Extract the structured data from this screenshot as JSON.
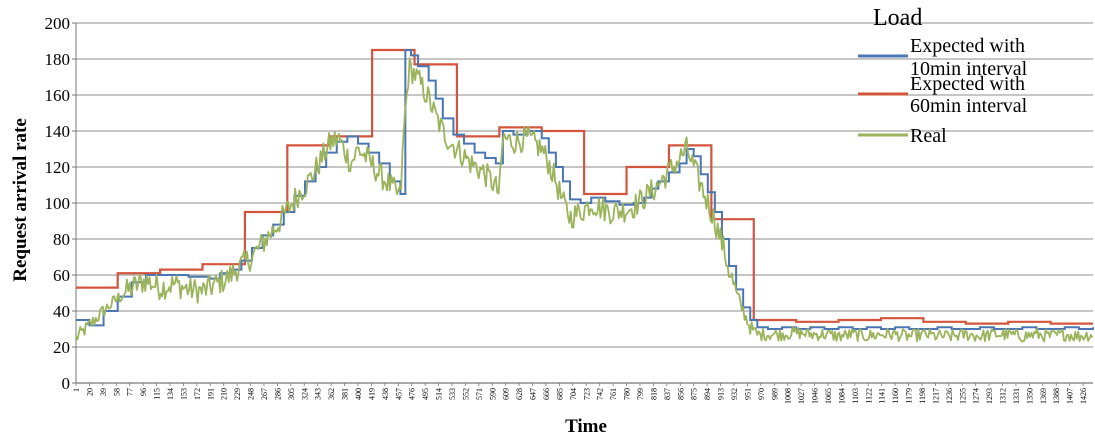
{
  "chart_data": {
    "type": "line",
    "ylabel": "Request arrival rate",
    "xlabel": "Time",
    "ylim": [
      0,
      200
    ],
    "yticks": [
      0,
      20,
      40,
      60,
      80,
      100,
      120,
      140,
      160,
      180,
      200
    ],
    "xlim": [
      1,
      1440
    ],
    "x_tick_labels": [
      "1",
      "20",
      "39",
      "58",
      "77",
      "96",
      "115",
      "134",
      "153",
      "172",
      "191",
      "210",
      "229",
      "248",
      "267",
      "286",
      "305",
      "324",
      "343",
      "362",
      "381",
      "400",
      "419",
      "438",
      "457",
      "476",
      "495",
      "514",
      "533",
      "552",
      "571",
      "590",
      "609",
      "628",
      "647",
      "666",
      "685",
      "704",
      "723",
      "742",
      "761",
      "780",
      "799",
      "818",
      "837",
      "856",
      "875",
      "894",
      "913",
      "932",
      "951",
      "970",
      "989",
      "1008",
      "1027",
      "1046",
      "1065",
      "1084",
      "1103",
      "1122",
      "1141",
      "1160",
      "1179",
      "1198",
      "1217",
      "1236",
      "1255",
      "1274",
      "1293",
      "1312",
      "1331",
      "1350",
      "1369",
      "1388",
      "1407",
      "1426"
    ],
    "grid": true,
    "legend": {
      "title": "Load",
      "placement": "top-right"
    },
    "series": [
      {
        "name": "Expected with 10min interval",
        "color": "#4a77b4",
        "style": "step",
        "points": [
          [
            1,
            35
          ],
          [
            20,
            32
          ],
          [
            40,
            40
          ],
          [
            60,
            48
          ],
          [
            80,
            56
          ],
          [
            100,
            60
          ],
          [
            130,
            60
          ],
          [
            160,
            59
          ],
          [
            190,
            58
          ],
          [
            205,
            61
          ],
          [
            220,
            63
          ],
          [
            235,
            68
          ],
          [
            250,
            75
          ],
          [
            265,
            82
          ],
          [
            280,
            88
          ],
          [
            295,
            95
          ],
          [
            310,
            104
          ],
          [
            325,
            112
          ],
          [
            340,
            120
          ],
          [
            355,
            128
          ],
          [
            370,
            134
          ],
          [
            385,
            137
          ],
          [
            400,
            133
          ],
          [
            415,
            128
          ],
          [
            430,
            122
          ],
          [
            445,
            112
          ],
          [
            460,
            105
          ],
          [
            467,
            185
          ],
          [
            475,
            182
          ],
          [
            485,
            176
          ],
          [
            500,
            168
          ],
          [
            510,
            158
          ],
          [
            520,
            147
          ],
          [
            535,
            138
          ],
          [
            550,
            133
          ],
          [
            565,
            128
          ],
          [
            580,
            125
          ],
          [
            595,
            122
          ],
          [
            605,
            140
          ],
          [
            620,
            138
          ],
          [
            640,
            140
          ],
          [
            660,
            136
          ],
          [
            670,
            128
          ],
          [
            680,
            120
          ],
          [
            690,
            112
          ],
          [
            700,
            102
          ],
          [
            715,
            100
          ],
          [
            730,
            103
          ],
          [
            750,
            101
          ],
          [
            770,
            99
          ],
          [
            790,
            100
          ],
          [
            805,
            103
          ],
          [
            815,
            108
          ],
          [
            825,
            112
          ],
          [
            840,
            117
          ],
          [
            855,
            122
          ],
          [
            865,
            130
          ],
          [
            875,
            126
          ],
          [
            885,
            116
          ],
          [
            895,
            106
          ],
          [
            905,
            95
          ],
          [
            915,
            80
          ],
          [
            925,
            65
          ],
          [
            935,
            52
          ],
          [
            945,
            42
          ],
          [
            955,
            35
          ],
          [
            965,
            31
          ],
          [
            980,
            30
          ],
          [
            1000,
            31
          ],
          [
            1020,
            30
          ],
          [
            1040,
            31
          ],
          [
            1060,
            30
          ],
          [
            1080,
            31
          ],
          [
            1100,
            30
          ],
          [
            1120,
            31
          ],
          [
            1140,
            30
          ],
          [
            1160,
            31
          ],
          [
            1180,
            30
          ],
          [
            1200,
            30
          ],
          [
            1220,
            31
          ],
          [
            1240,
            30
          ],
          [
            1260,
            30
          ],
          [
            1280,
            31
          ],
          [
            1300,
            30
          ],
          [
            1320,
            30
          ],
          [
            1340,
            31
          ],
          [
            1360,
            30
          ],
          [
            1380,
            30
          ],
          [
            1400,
            31
          ],
          [
            1420,
            30
          ],
          [
            1440,
            31
          ]
        ]
      },
      {
        "name": "Expected with 60min interval",
        "color": "#d2553d",
        "style": "step",
        "points": [
          [
            1,
            53
          ],
          [
            60,
            53
          ],
          [
            60,
            61
          ],
          [
            120,
            61
          ],
          [
            120,
            63
          ],
          [
            180,
            63
          ],
          [
            180,
            66
          ],
          [
            240,
            66
          ],
          [
            240,
            95
          ],
          [
            300,
            95
          ],
          [
            300,
            132
          ],
          [
            360,
            132
          ],
          [
            360,
            137
          ],
          [
            420,
            137
          ],
          [
            420,
            185
          ],
          [
            480,
            185
          ],
          [
            480,
            177
          ],
          [
            540,
            177
          ],
          [
            540,
            137
          ],
          [
            600,
            137
          ],
          [
            600,
            142
          ],
          [
            660,
            142
          ],
          [
            660,
            140
          ],
          [
            720,
            140
          ],
          [
            720,
            105
          ],
          [
            780,
            105
          ],
          [
            780,
            120
          ],
          [
            840,
            120
          ],
          [
            840,
            132
          ],
          [
            900,
            132
          ],
          [
            900,
            91
          ],
          [
            960,
            91
          ],
          [
            960,
            35
          ],
          [
            1020,
            35
          ],
          [
            1020,
            34
          ],
          [
            1080,
            34
          ],
          [
            1080,
            35
          ],
          [
            1140,
            35
          ],
          [
            1140,
            36
          ],
          [
            1200,
            36
          ],
          [
            1200,
            34
          ],
          [
            1260,
            34
          ],
          [
            1260,
            33
          ],
          [
            1320,
            33
          ],
          [
            1320,
            34
          ],
          [
            1380,
            34
          ],
          [
            1380,
            33
          ],
          [
            1440,
            33
          ]
        ]
      },
      {
        "name": "Real",
        "color": "#9bb45c",
        "style": "noisy",
        "points": [
          [
            1,
            25
          ],
          [
            20,
            32
          ],
          [
            40,
            40
          ],
          [
            60,
            47
          ],
          [
            80,
            53
          ],
          [
            100,
            57
          ],
          [
            120,
            53
          ],
          [
            140,
            55
          ],
          [
            160,
            52
          ],
          [
            180,
            51
          ],
          [
            200,
            55
          ],
          [
            215,
            58
          ],
          [
            230,
            64
          ],
          [
            250,
            70
          ],
          [
            270,
            80
          ],
          [
            290,
            90
          ],
          [
            310,
            102
          ],
          [
            330,
            112
          ],
          [
            345,
            122
          ],
          [
            360,
            133
          ],
          [
            372,
            136
          ],
          [
            380,
            130
          ],
          [
            390,
            122
          ],
          [
            400,
            130
          ],
          [
            415,
            124
          ],
          [
            430,
            116
          ],
          [
            445,
            110
          ],
          [
            460,
            103
          ],
          [
            465,
            140
          ],
          [
            472,
            175
          ],
          [
            480,
            172
          ],
          [
            490,
            165
          ],
          [
            500,
            158
          ],
          [
            510,
            148
          ],
          [
            520,
            140
          ],
          [
            530,
            134
          ],
          [
            545,
            128
          ],
          [
            560,
            122
          ],
          [
            575,
            118
          ],
          [
            590,
            112
          ],
          [
            600,
            105
          ],
          [
            605,
            136
          ],
          [
            620,
            134
          ],
          [
            640,
            136
          ],
          [
            660,
            130
          ],
          [
            670,
            122
          ],
          [
            680,
            112
          ],
          [
            690,
            100
          ],
          [
            700,
            92
          ],
          [
            715,
            95
          ],
          [
            730,
            100
          ],
          [
            745,
            97
          ],
          [
            760,
            95
          ],
          [
            775,
            96
          ],
          [
            790,
            98
          ],
          [
            805,
            103
          ],
          [
            820,
            108
          ],
          [
            835,
            115
          ],
          [
            850,
            122
          ],
          [
            865,
            130
          ],
          [
            875,
            120
          ],
          [
            885,
            110
          ],
          [
            895,
            100
          ],
          [
            905,
            90
          ],
          [
            915,
            78
          ],
          [
            925,
            63
          ],
          [
            935,
            50
          ],
          [
            945,
            40
          ],
          [
            955,
            31
          ],
          [
            965,
            27
          ],
          [
            980,
            27
          ],
          [
            1000,
            27
          ],
          [
            1020,
            28
          ],
          [
            1040,
            27
          ],
          [
            1060,
            27
          ],
          [
            1080,
            26
          ],
          [
            1100,
            27
          ],
          [
            1120,
            26
          ],
          [
            1140,
            27
          ],
          [
            1160,
            27
          ],
          [
            1180,
            26
          ],
          [
            1200,
            27
          ],
          [
            1220,
            26
          ],
          [
            1240,
            26
          ],
          [
            1260,
            27
          ],
          [
            1280,
            26
          ],
          [
            1300,
            27
          ],
          [
            1320,
            27
          ],
          [
            1340,
            26
          ],
          [
            1360,
            27
          ],
          [
            1380,
            26
          ],
          [
            1400,
            27
          ],
          [
            1420,
            26
          ],
          [
            1440,
            27
          ]
        ]
      }
    ]
  }
}
